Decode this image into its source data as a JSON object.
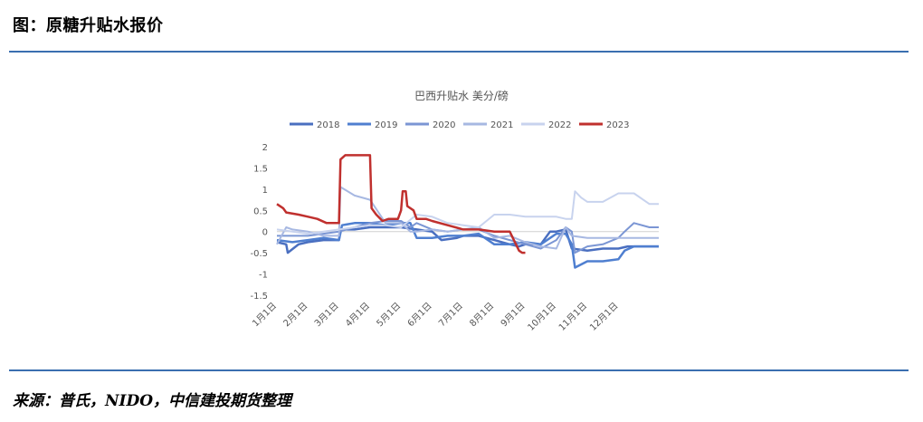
{
  "figure_title": "图：原糖升贴水报价",
  "source": "来源：普氏，NIDO，中信建投期货整理",
  "chart_data": {
    "type": "line",
    "title": "巴西升贴水 美分/磅",
    "xlabel": "",
    "ylabel": "",
    "ylim": [
      -1.5,
      2
    ],
    "yticks": [
      2,
      1.5,
      1,
      0.5,
      0,
      -0.5,
      -1,
      -1.5
    ],
    "x_tick_labels": [
      "1月1日",
      "2月1日",
      "3月1日",
      "4月1日",
      "5月1日",
      "6月1日",
      "7月1日",
      "8月1日",
      "9月1日",
      "10月1日",
      "11月1日",
      "12月1日"
    ],
    "xlim_month": [
      0,
      12.3
    ],
    "grid": "zero line only",
    "legend_position": "top",
    "series": [
      {
        "name": "2018",
        "color": "#4a6fc0",
        "width": 2.5,
        "x": [
          0,
          0.3,
          0.35,
          0.7,
          1.0,
          1.5,
          2.0,
          2.05,
          2.5,
          3.0,
          3.5,
          4.0,
          4.5,
          5.0,
          5.3,
          5.8,
          6.0,
          6.5,
          7.0,
          7.5,
          7.8,
          8.0,
          8.5,
          8.8,
          9.0,
          9.3,
          9.5,
          10.0,
          10.5,
          11.0,
          11.3,
          11.5,
          12.0,
          12.3
        ],
        "y": [
          -0.25,
          -0.3,
          -0.5,
          -0.3,
          -0.25,
          -0.2,
          -0.2,
          0.05,
          0.05,
          0.1,
          0.1,
          0.1,
          0.05,
          0.0,
          -0.2,
          -0.15,
          -0.1,
          -0.1,
          -0.2,
          -0.3,
          -0.35,
          -0.3,
          -0.3,
          0.0,
          0.0,
          0.05,
          -0.4,
          -0.45,
          -0.4,
          -0.4,
          -0.35,
          -0.35,
          -0.35,
          -0.35
        ]
      },
      {
        "name": "2019",
        "color": "#4f7fd0",
        "width": 2.5,
        "x": [
          0,
          0.5,
          1.0,
          1.5,
          2.0,
          2.1,
          2.5,
          3.0,
          3.5,
          4.0,
          4.3,
          4.5,
          5.0,
          5.5,
          6.0,
          6.5,
          7.0,
          7.5,
          8.0,
          8.5,
          9.0,
          9.3,
          9.5,
          9.6,
          10.0,
          10.5,
          11.0,
          11.2,
          11.5,
          12.0,
          12.3
        ],
        "y": [
          -0.2,
          -0.25,
          -0.2,
          -0.15,
          -0.2,
          0.15,
          0.2,
          0.2,
          0.15,
          0.2,
          0.2,
          -0.15,
          -0.15,
          -0.1,
          -0.1,
          -0.05,
          -0.3,
          -0.3,
          -0.25,
          -0.3,
          -0.05,
          -0.05,
          -0.3,
          -0.85,
          -0.7,
          -0.7,
          -0.65,
          -0.45,
          -0.35,
          -0.35,
          -0.35
        ]
      },
      {
        "name": "2020",
        "color": "#7b96d4",
        "width": 2,
        "x": [
          0,
          0.5,
          1.0,
          1.5,
          2.0,
          2.5,
          3.0,
          3.5,
          4.0,
          4.3,
          4.5,
          5.0,
          5.5,
          6.0,
          6.5,
          7.0,
          7.5,
          8.0,
          8.5,
          9.0,
          9.3,
          9.5,
          9.6,
          10.0,
          10.5,
          11.0,
          11.2,
          11.5,
          12.0,
          12.3
        ],
        "y": [
          -0.1,
          -0.1,
          -0.1,
          -0.05,
          0.0,
          0.1,
          0.2,
          0.25,
          0.25,
          0.1,
          0.2,
          0.05,
          0.0,
          0.05,
          0.05,
          -0.1,
          -0.2,
          -0.3,
          -0.4,
          -0.2,
          0.1,
          0.0,
          -0.5,
          -0.35,
          -0.3,
          -0.15,
          0.0,
          0.2,
          0.1,
          0.1
        ]
      },
      {
        "name": "2021",
        "color": "#a7b8e2",
        "width": 2,
        "x": [
          0,
          0.3,
          0.5,
          1.0,
          1.5,
          2.0,
          2.05,
          2.5,
          3.0,
          3.5,
          4.0,
          4.3,
          4.5,
          5.0,
          5.5,
          6.0,
          6.5,
          7.0,
          7.5,
          8.0,
          8.5,
          9.0,
          9.3,
          9.5,
          10.0,
          10.5,
          11.0,
          11.5,
          12.0,
          12.3
        ],
        "y": [
          -0.3,
          0.1,
          0.05,
          0.0,
          -0.1,
          -0.1,
          1.05,
          0.85,
          0.75,
          0.2,
          0.2,
          0.0,
          0.0,
          0.05,
          0.0,
          0.05,
          0.1,
          -0.15,
          -0.1,
          -0.25,
          -0.35,
          -0.4,
          0.1,
          -0.1,
          -0.15,
          -0.15,
          -0.15,
          -0.15,
          -0.15,
          -0.15
        ]
      },
      {
        "name": "2022",
        "color": "#c8d3ee",
        "width": 2,
        "x": [
          0,
          0.5,
          1.0,
          1.5,
          2.0,
          2.5,
          3.0,
          3.5,
          4.0,
          4.5,
          5.0,
          5.5,
          6.0,
          6.5,
          7.0,
          7.5,
          8.0,
          8.5,
          9.0,
          9.3,
          9.5,
          9.6,
          9.8,
          10.0,
          10.5,
          11.0,
          11.5,
          12.0,
          12.3
        ],
        "y": [
          0.05,
          0.0,
          -0.05,
          0.0,
          0.05,
          0.1,
          0.15,
          0.15,
          0.1,
          0.4,
          0.35,
          0.2,
          0.15,
          0.1,
          0.4,
          0.4,
          0.35,
          0.35,
          0.35,
          0.3,
          0.3,
          0.95,
          0.8,
          0.7,
          0.7,
          0.9,
          0.9,
          0.65,
          0.65
        ]
      },
      {
        "name": "2023",
        "color": "#c0302e",
        "width": 2.5,
        "x": [
          0,
          0.2,
          0.3,
          0.7,
          1.0,
          1.3,
          1.6,
          2.0,
          2.05,
          2.2,
          3.0,
          3.05,
          3.2,
          3.4,
          3.6,
          3.9,
          4.0,
          4.05,
          4.15,
          4.2,
          4.4,
          4.5,
          4.8,
          5.0,
          5.5,
          6.0,
          6.5,
          7.0,
          7.5,
          7.8,
          7.9,
          8.0
        ],
        "y": [
          0.65,
          0.55,
          0.45,
          0.4,
          0.35,
          0.3,
          0.2,
          0.2,
          1.7,
          1.8,
          1.8,
          0.55,
          0.4,
          0.25,
          0.3,
          0.3,
          0.5,
          0.95,
          0.95,
          0.6,
          0.5,
          0.3,
          0.3,
          0.25,
          0.15,
          0.05,
          0.05,
          0.0,
          0.0,
          -0.45,
          -0.5,
          -0.5
        ]
      }
    ]
  }
}
